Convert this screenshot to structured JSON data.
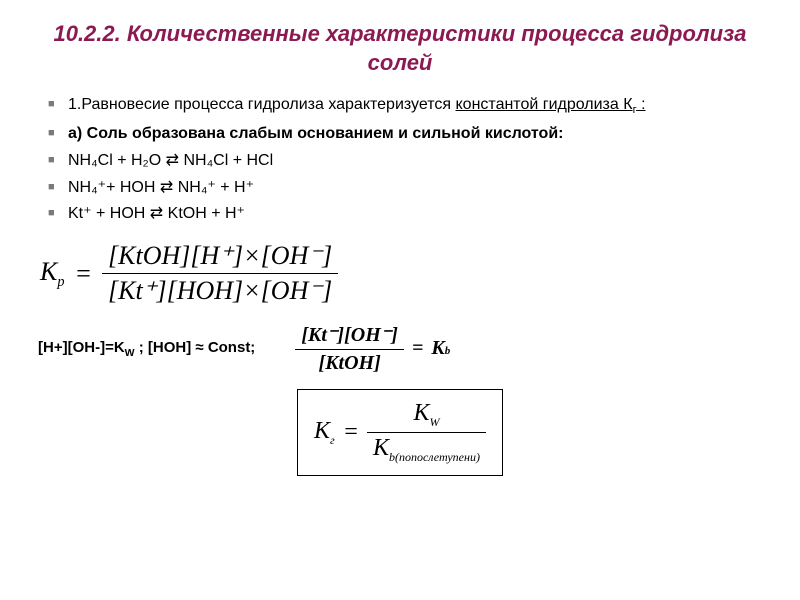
{
  "title": "10.2.2. Количественные характеристики процесса гидролиза солей",
  "bullets": {
    "intro_pre": "1.Равновесие процесса гидролиза характеризуется ",
    "intro_uline": "константой гидролиза К",
    "intro_sub": "г",
    "intro_post": " :",
    "case_a": "а) Соль образована слабым основанием и сильной кислотой:",
    "eq1": "NH₄Cl + H₂O ⇄ NH₄Cl + HCl",
    "eq2": "NH₄⁺+ HOH ⇄ NH₄⁺ + H⁺",
    "eq3": "Kt⁺ + HOH ⇄ KtOH + H⁺"
  },
  "kp": {
    "lhs": "K",
    "lhs_sub": "p",
    "eq": "=",
    "num": "[KtOH][H⁺]×[OH⁻]",
    "den": "[Kt⁺][HOH]×[OH⁻]"
  },
  "cond": {
    "left": "[H+][OH-]=K",
    "left_sub": "W",
    "left_post": " ;   [HOH] ≈ Const;"
  },
  "kb": {
    "num": "[Kt⁻][OH⁻]",
    "den": "[KtOH]",
    "eq": "=",
    "rhs": "K",
    "rhs_sub": "b"
  },
  "boxed": {
    "K": "K",
    "g": "г",
    "eq": "=",
    "num_K": "K",
    "num_sub": "W",
    "den_K": "K",
    "den_sub": "b(попослетупени)"
  }
}
